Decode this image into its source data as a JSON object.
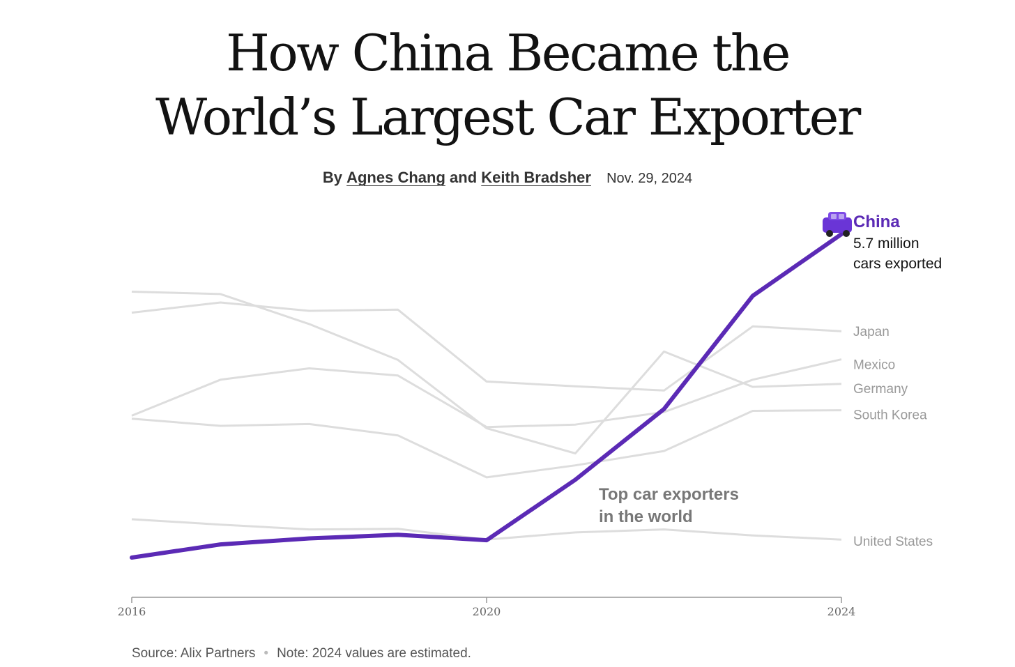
{
  "article": {
    "title_line1": "How China Became the",
    "title_line2": "World’s Largest Car Exporter",
    "byline_prefix": "By",
    "author1": "Agnes Chang",
    "byline_and": "and",
    "author2": "Keith Bradsher",
    "date": "Nov. 29, 2024"
  },
  "footer": {
    "source": "Source: Alix Partners",
    "note": "Note: 2024 values are estimated."
  },
  "chart_data": {
    "type": "line",
    "title": "Top car exporters in the world",
    "x": [
      2016,
      2017,
      2018,
      2019,
      2020,
      2021,
      2022,
      2023,
      2024
    ],
    "xticks": [
      "2016",
      "2020",
      "2024"
    ],
    "ylim": [
      0,
      5.7
    ],
    "grid": false,
    "highlight_color": "#5b2ab5",
    "other_color": "#dddddd",
    "series": [
      {
        "name": "China",
        "highlight": true,
        "values": [
          0.3,
          0.52,
          0.62,
          0.68,
          0.59,
          1.6,
          2.78,
          4.67,
          5.7
        ],
        "label": "China",
        "sublabel1": "5.7 million",
        "sublabel2": "cars exported"
      },
      {
        "name": "Japan",
        "values": [
          4.39,
          4.56,
          4.42,
          4.44,
          3.24,
          3.16,
          3.09,
          4.16,
          4.08
        ]
      },
      {
        "name": "Mexico",
        "values": [
          2.67,
          3.27,
          3.46,
          3.34,
          2.48,
          2.52,
          2.73,
          3.27,
          3.61
        ]
      },
      {
        "name": "Germany",
        "values": [
          4.74,
          4.7,
          4.2,
          3.6,
          2.46,
          2.04,
          3.74,
          3.15,
          3.2
        ]
      },
      {
        "name": "South Korea",
        "values": [
          2.62,
          2.5,
          2.53,
          2.34,
          1.64,
          1.84,
          2.08,
          2.75,
          2.76
        ]
      },
      {
        "name": "United States",
        "values": [
          0.94,
          0.85,
          0.77,
          0.78,
          0.6,
          0.72,
          0.77,
          0.67,
          0.6
        ]
      }
    ]
  }
}
